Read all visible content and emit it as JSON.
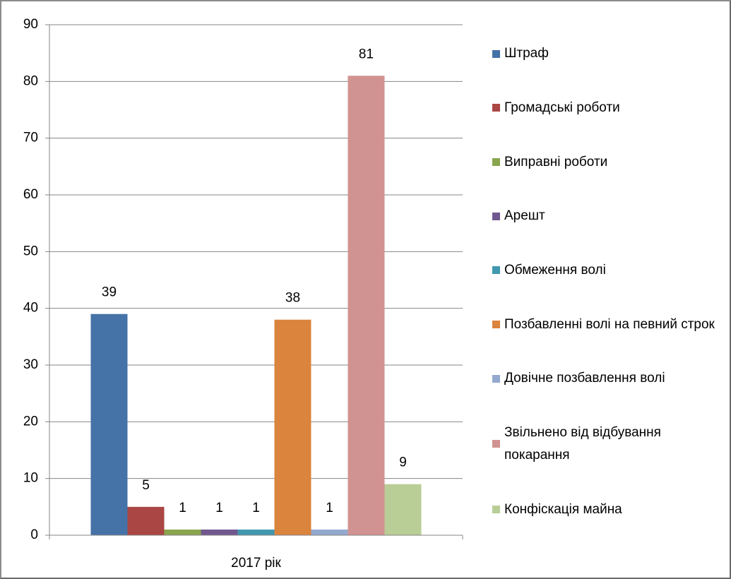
{
  "chart_data": {
    "type": "bar",
    "categories": [
      "2017 рік"
    ],
    "series": [
      {
        "name": "Штраф",
        "color": "#4572a7",
        "values": [
          39
        ]
      },
      {
        "name": "Громадські роботи",
        "color": "#aa4643",
        "values": [
          5
        ]
      },
      {
        "name": "Виправні роботи",
        "color": "#89a54e",
        "values": [
          1
        ]
      },
      {
        "name": "Арешт",
        "color": "#71588f",
        "values": [
          1
        ]
      },
      {
        "name": "Обмеження волі",
        "color": "#4198af",
        "values": [
          1
        ]
      },
      {
        "name": "Позбавленні волі на певний строк",
        "color": "#db843d",
        "values": [
          38
        ]
      },
      {
        "name": "Довічне позбавлення волі",
        "color": "#93a9cf",
        "values": [
          1
        ]
      },
      {
        "name": "Звільнено від відбування покарання",
        "color": "#d19392",
        "values": [
          81
        ]
      },
      {
        "name": "Конфіскація майна",
        "color": "#b9cd96",
        "values": [
          9
        ]
      }
    ],
    "ylim": [
      0,
      90
    ],
    "yticks": [
      0,
      10,
      20,
      30,
      40,
      50,
      60,
      70,
      80,
      90
    ],
    "grid": true,
    "legend": "right"
  }
}
